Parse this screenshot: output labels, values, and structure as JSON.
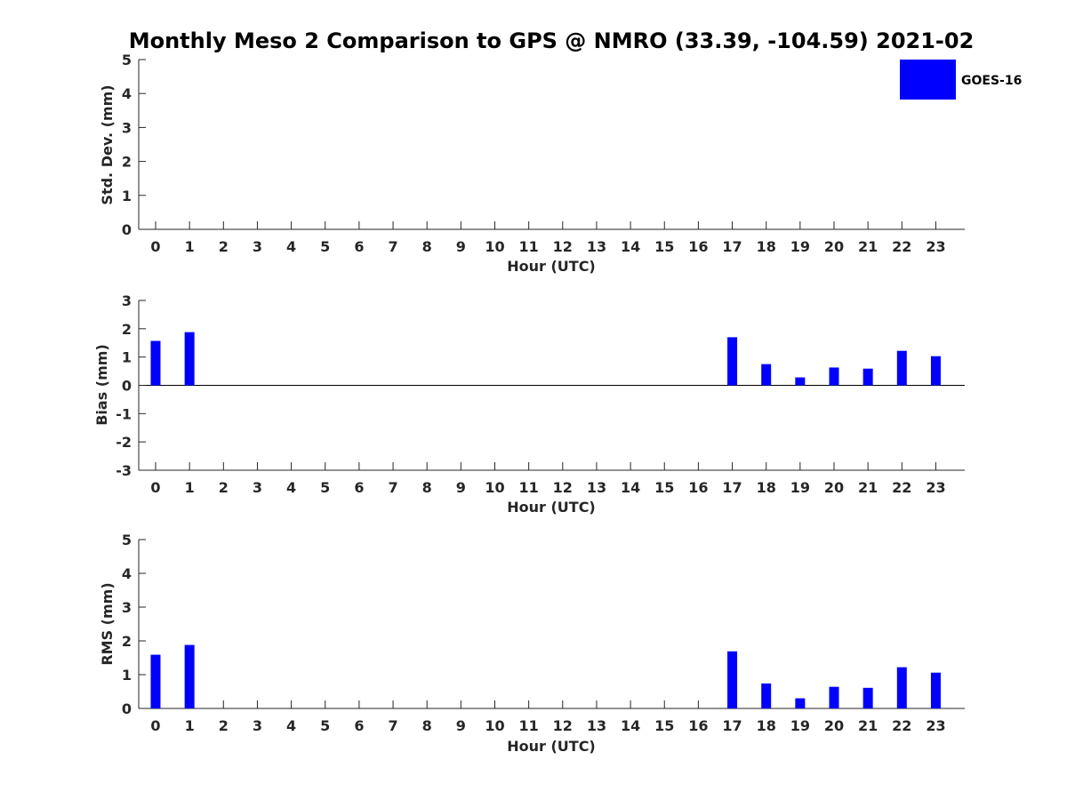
{
  "chart_data": [
    {
      "type": "bar",
      "title": "Monthly Meso 2 Comparison to GPS @ NMRO (33.39, -104.59) 2021-02",
      "xlabel": "Hour (UTC)",
      "ylabel": "Std. Dev. (mm)",
      "categories": [
        "0",
        "1",
        "2",
        "3",
        "4",
        "5",
        "6",
        "7",
        "8",
        "9",
        "10",
        "11",
        "12",
        "13",
        "14",
        "15",
        "16",
        "17",
        "18",
        "19",
        "20",
        "21",
        "22",
        "23"
      ],
      "ylim": [
        0,
        5
      ],
      "yticks": [
        "0",
        "1",
        "2",
        "3",
        "4",
        "5"
      ],
      "series": [
        {
          "name": "GOES-16",
          "color": "#0000ff",
          "values": [
            null,
            null,
            null,
            null,
            null,
            null,
            null,
            null,
            null,
            null,
            null,
            null,
            null,
            null,
            null,
            null,
            null,
            null,
            null,
            null,
            null,
            null,
            null,
            null
          ]
        }
      ],
      "legend": "top-right",
      "grid": false
    },
    {
      "type": "bar",
      "xlabel": "Hour (UTC)",
      "ylabel": "Bias (mm)",
      "categories": [
        "0",
        "1",
        "2",
        "3",
        "4",
        "5",
        "6",
        "7",
        "8",
        "9",
        "10",
        "11",
        "12",
        "13",
        "14",
        "15",
        "16",
        "17",
        "18",
        "19",
        "20",
        "21",
        "22",
        "23"
      ],
      "ylim": [
        -3,
        3
      ],
      "yticks": [
        "-3",
        "-2",
        "-1",
        "0",
        "1",
        "2",
        "3"
      ],
      "zero_line": true,
      "series": [
        {
          "name": "GOES-16",
          "color": "#0000ff",
          "values": [
            1.57,
            1.88,
            null,
            null,
            null,
            null,
            null,
            null,
            null,
            null,
            null,
            null,
            null,
            null,
            null,
            null,
            null,
            1.7,
            0.75,
            0.28,
            0.63,
            0.59,
            1.22,
            1.03
          ]
        }
      ],
      "grid": false
    },
    {
      "type": "bar",
      "xlabel": "Hour (UTC)",
      "ylabel": "RMS (mm)",
      "categories": [
        "0",
        "1",
        "2",
        "3",
        "4",
        "5",
        "6",
        "7",
        "8",
        "9",
        "10",
        "11",
        "12",
        "13",
        "14",
        "15",
        "16",
        "17",
        "18",
        "19",
        "20",
        "21",
        "22",
        "23"
      ],
      "ylim": [
        0,
        5
      ],
      "yticks": [
        "0",
        "1",
        "2",
        "3",
        "4",
        "5"
      ],
      "series": [
        {
          "name": "GOES-16",
          "color": "#0000ff",
          "values": [
            1.59,
            1.88,
            null,
            null,
            null,
            null,
            null,
            null,
            null,
            null,
            null,
            null,
            null,
            null,
            null,
            null,
            null,
            1.69,
            0.74,
            0.3,
            0.64,
            0.61,
            1.22,
            1.06
          ]
        }
      ],
      "grid": false
    }
  ]
}
